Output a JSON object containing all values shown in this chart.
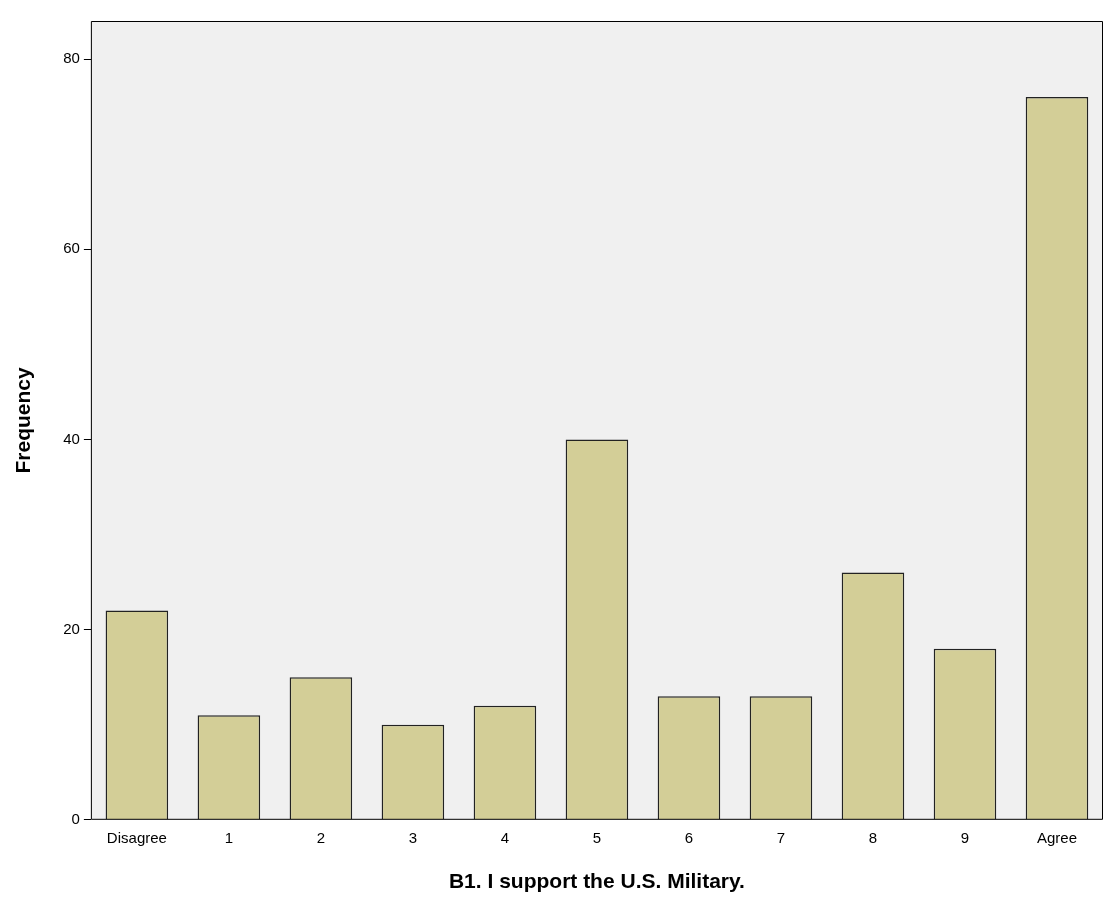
{
  "chart_data": {
    "type": "bar",
    "xlabel": "B1. I support the U.S. Military.",
    "ylabel": "Frequency",
    "categories": [
      "Disagree",
      "1",
      "2",
      "3",
      "4",
      "5",
      "6",
      "7",
      "8",
      "9",
      "Agree"
    ],
    "values": [
      22,
      11,
      15,
      10,
      12,
      40,
      13,
      13,
      26,
      18,
      76
    ],
    "color": "#d3ce97",
    "ylim": [
      0,
      84
    ],
    "yticks": [
      0,
      20,
      40,
      60,
      80
    ],
    "grid": false,
    "legend": false
  }
}
